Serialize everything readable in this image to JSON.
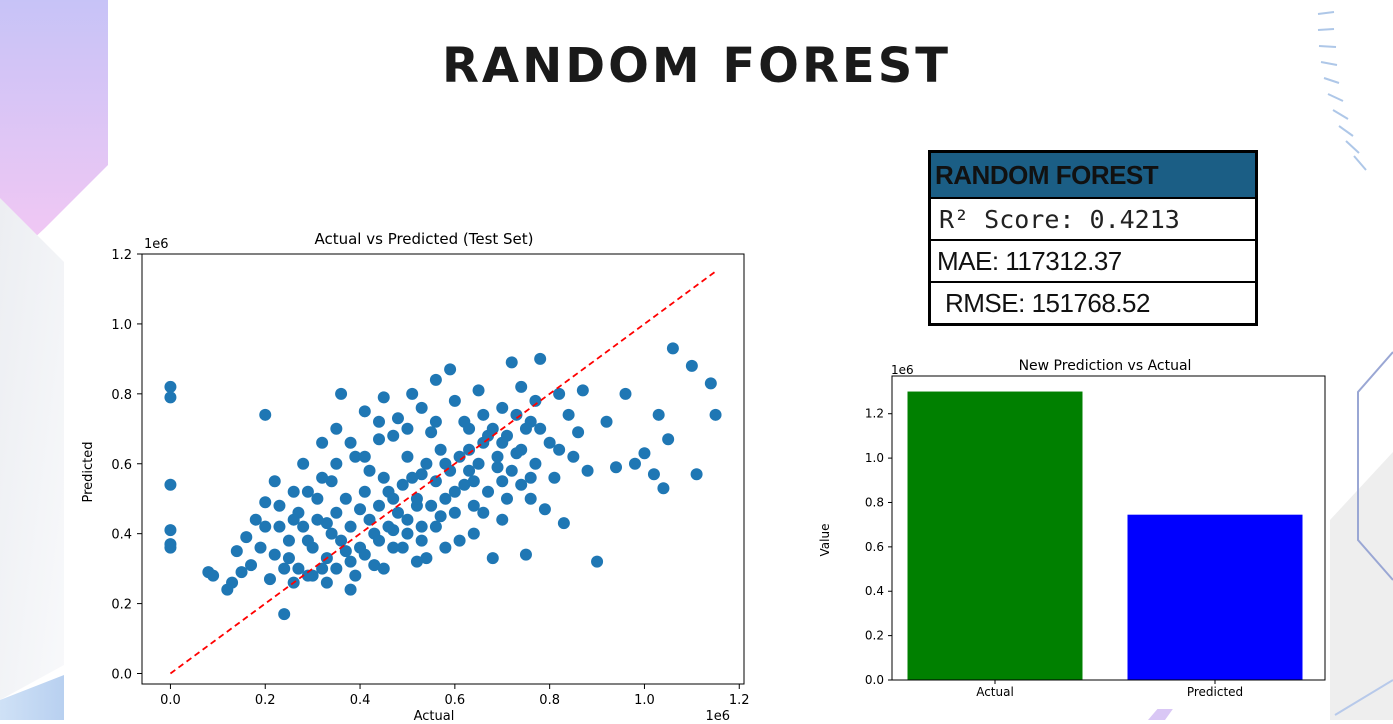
{
  "slide": {
    "title": "RANDOM FOREST"
  },
  "metrics": {
    "header": "RANDOM FOREST",
    "r2": "R² Score: 0.4213",
    "mae": "MAE: 117312.37",
    "rmse": "RMSE: 151768.52"
  },
  "colors": {
    "scatter_points": "#1f77b4",
    "diagonal": "#ff0000",
    "bar_actual": "#008000",
    "bar_predicted": "#0000ff",
    "table_header": "#1b5e85"
  },
  "chart_data": [
    {
      "type": "scatter",
      "title": "Actual vs Predicted (Test Set)",
      "xlabel": "Actual",
      "ylabel": "Predicted",
      "x_scale_label": "1e6",
      "y_scale_label": "1e6",
      "xlim": [
        -0.06,
        1.21
      ],
      "ylim": [
        -0.03,
        1.2
      ],
      "xticks": [
        "0.0",
        "0.2",
        "0.4",
        "0.6",
        "0.8",
        "1.0",
        "1.2"
      ],
      "yticks": [
        "0.0",
        "0.2",
        "0.4",
        "0.6",
        "0.8",
        "1.0",
        "1.2"
      ],
      "reference_line": {
        "x": [
          0.0,
          1.15
        ],
        "y": [
          0.0,
          1.15
        ],
        "style": "dashed"
      },
      "points": [
        [
          0.0,
          0.82
        ],
        [
          0.0,
          0.79
        ],
        [
          0.0,
          0.54
        ],
        [
          0.0,
          0.41
        ],
        [
          0.0,
          0.37
        ],
        [
          0.0,
          0.36
        ],
        [
          0.08,
          0.29
        ],
        [
          0.09,
          0.28
        ],
        [
          0.12,
          0.24
        ],
        [
          0.13,
          0.26
        ],
        [
          0.14,
          0.35
        ],
        [
          0.15,
          0.29
        ],
        [
          0.16,
          0.39
        ],
        [
          0.17,
          0.31
        ],
        [
          0.18,
          0.44
        ],
        [
          0.19,
          0.36
        ],
        [
          0.2,
          0.74
        ],
        [
          0.2,
          0.49
        ],
        [
          0.21,
          0.27
        ],
        [
          0.22,
          0.55
        ],
        [
          0.23,
          0.42
        ],
        [
          0.24,
          0.17
        ],
        [
          0.25,
          0.33
        ],
        [
          0.26,
          0.52
        ],
        [
          0.27,
          0.46
        ],
        [
          0.28,
          0.6
        ],
        [
          0.29,
          0.38
        ],
        [
          0.3,
          0.28
        ],
        [
          0.31,
          0.5
        ],
        [
          0.32,
          0.66
        ],
        [
          0.33,
          0.43
        ],
        [
          0.34,
          0.55
        ],
        [
          0.35,
          0.7
        ],
        [
          0.36,
          0.8
        ],
        [
          0.37,
          0.35
        ],
        [
          0.38,
          0.24
        ],
        [
          0.39,
          0.62
        ],
        [
          0.4,
          0.47
        ],
        [
          0.41,
          0.75
        ],
        [
          0.42,
          0.58
        ],
        [
          0.43,
          0.31
        ],
        [
          0.44,
          0.67
        ],
        [
          0.45,
          0.79
        ],
        [
          0.46,
          0.52
        ],
        [
          0.47,
          0.41
        ],
        [
          0.48,
          0.73
        ],
        [
          0.49,
          0.36
        ],
        [
          0.5,
          0.62
        ],
        [
          0.51,
          0.8
        ],
        [
          0.52,
          0.48
        ],
        [
          0.53,
          0.57
        ],
        [
          0.54,
          0.33
        ],
        [
          0.55,
          0.69
        ],
        [
          0.56,
          0.84
        ],
        [
          0.57,
          0.45
        ],
        [
          0.58,
          0.6
        ],
        [
          0.59,
          0.87
        ],
        [
          0.6,
          0.52
        ],
        [
          0.61,
          0.38
        ],
        [
          0.62,
          0.72
        ],
        [
          0.63,
          0.64
        ],
        [
          0.64,
          0.55
        ],
        [
          0.65,
          0.81
        ],
        [
          0.66,
          0.46
        ],
        [
          0.67,
          0.68
        ],
        [
          0.68,
          0.33
        ],
        [
          0.69,
          0.59
        ],
        [
          0.7,
          0.76
        ],
        [
          0.71,
          0.5
        ],
        [
          0.72,
          0.89
        ],
        [
          0.73,
          0.63
        ],
        [
          0.74,
          0.54
        ],
        [
          0.75,
          0.34
        ],
        [
          0.76,
          0.72
        ],
        [
          0.77,
          0.6
        ],
        [
          0.78,
          0.9
        ],
        [
          0.79,
          0.47
        ],
        [
          0.8,
          0.66
        ],
        [
          0.81,
          0.56
        ],
        [
          0.82,
          0.8
        ],
        [
          0.83,
          0.43
        ],
        [
          0.84,
          0.74
        ],
        [
          0.85,
          0.62
        ],
        [
          0.86,
          0.69
        ],
        [
          0.87,
          0.81
        ],
        [
          0.88,
          0.58
        ],
        [
          0.9,
          0.32
        ],
        [
          0.92,
          0.72
        ],
        [
          0.94,
          0.59
        ],
        [
          0.96,
          0.8
        ],
        [
          0.98,
          0.6
        ],
        [
          1.0,
          0.63
        ],
        [
          1.02,
          0.57
        ],
        [
          1.03,
          0.74
        ],
        [
          1.04,
          0.53
        ],
        [
          1.05,
          0.67
        ],
        [
          1.06,
          0.93
        ],
        [
          1.1,
          0.88
        ],
        [
          1.11,
          0.57
        ],
        [
          1.14,
          0.83
        ],
        [
          1.15,
          0.74
        ],
        [
          0.22,
          0.34
        ],
        [
          0.25,
          0.38
        ],
        [
          0.27,
          0.3
        ],
        [
          0.28,
          0.42
        ],
        [
          0.3,
          0.36
        ],
        [
          0.31,
          0.44
        ],
        [
          0.33,
          0.33
        ],
        [
          0.34,
          0.4
        ],
        [
          0.35,
          0.46
        ],
        [
          0.36,
          0.38
        ],
        [
          0.37,
          0.5
        ],
        [
          0.38,
          0.42
        ],
        [
          0.4,
          0.36
        ],
        [
          0.41,
          0.52
        ],
        [
          0.42,
          0.44
        ],
        [
          0.43,
          0.4
        ],
        [
          0.44,
          0.48
        ],
        [
          0.45,
          0.56
        ],
        [
          0.46,
          0.42
        ],
        [
          0.47,
          0.5
        ],
        [
          0.48,
          0.46
        ],
        [
          0.49,
          0.54
        ],
        [
          0.5,
          0.44
        ],
        [
          0.51,
          0.56
        ],
        [
          0.52,
          0.5
        ],
        [
          0.53,
          0.42
        ],
        [
          0.54,
          0.6
        ],
        [
          0.55,
          0.48
        ],
        [
          0.56,
          0.55
        ],
        [
          0.57,
          0.64
        ],
        [
          0.58,
          0.5
        ],
        [
          0.59,
          0.58
        ],
        [
          0.6,
          0.46
        ],
        [
          0.61,
          0.62
        ],
        [
          0.62,
          0.54
        ],
        [
          0.63,
          0.7
        ],
        [
          0.64,
          0.48
        ],
        [
          0.65,
          0.6
        ],
        [
          0.66,
          0.66
        ],
        [
          0.67,
          0.52
        ],
        [
          0.68,
          0.7
        ],
        [
          0.69,
          0.62
        ],
        [
          0.7,
          0.55
        ],
        [
          0.71,
          0.68
        ],
        [
          0.72,
          0.58
        ],
        [
          0.73,
          0.74
        ],
        [
          0.74,
          0.64
        ],
        [
          0.75,
          0.7
        ],
        [
          0.76,
          0.56
        ],
        [
          0.77,
          0.78
        ],
        [
          0.29,
          0.28
        ],
        [
          0.32,
          0.3
        ],
        [
          0.35,
          0.3
        ],
        [
          0.38,
          0.32
        ],
        [
          0.41,
          0.34
        ],
        [
          0.44,
          0.38
        ],
        [
          0.47,
          0.36
        ],
        [
          0.5,
          0.4
        ],
        [
          0.53,
          0.38
        ],
        [
          0.56,
          0.42
        ],
        [
          0.24,
          0.3
        ],
        [
          0.26,
          0.26
        ],
        [
          0.33,
          0.26
        ],
        [
          0.39,
          0.28
        ],
        [
          0.45,
          0.3
        ],
        [
          0.52,
          0.32
        ],
        [
          0.58,
          0.36
        ],
        [
          0.64,
          0.4
        ],
        [
          0.7,
          0.44
        ],
        [
          0.76,
          0.5
        ],
        [
          0.2,
          0.42
        ],
        [
          0.23,
          0.48
        ],
        [
          0.26,
          0.44
        ],
        [
          0.29,
          0.52
        ],
        [
          0.32,
          0.56
        ],
        [
          0.35,
          0.6
        ],
        [
          0.38,
          0.66
        ],
        [
          0.41,
          0.62
        ],
        [
          0.44,
          0.72
        ],
        [
          0.47,
          0.68
        ],
        [
          0.5,
          0.7
        ],
        [
          0.53,
          0.76
        ],
        [
          0.56,
          0.72
        ],
        [
          0.6,
          0.78
        ],
        [
          0.63,
          0.58
        ],
        [
          0.66,
          0.74
        ],
        [
          0.7,
          0.66
        ],
        [
          0.74,
          0.82
        ],
        [
          0.78,
          0.7
        ],
        [
          0.82,
          0.64
        ]
      ]
    },
    {
      "type": "bar",
      "title": "New Prediction vs Actual",
      "xlabel": "",
      "ylabel": "Value",
      "y_scale_label": "1e6",
      "categories": [
        "Actual",
        "Predicted"
      ],
      "values": [
        1.3,
        0.745
      ],
      "ylim": [
        0,
        1.37
      ],
      "yticks": [
        "0.0",
        "0.2",
        "0.4",
        "0.6",
        "0.8",
        "1.0",
        "1.2"
      ]
    }
  ]
}
